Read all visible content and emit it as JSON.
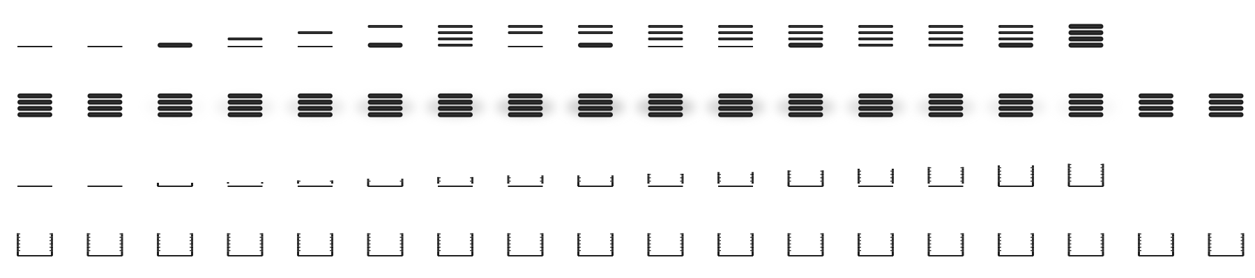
{
  "sprite_sheet": {
    "background": "#ffffff",
    "ink_color": "#1e1e1e",
    "glow_color": "#cfcfcf",
    "rows": [
      {
        "name": "disc-stack-assembly",
        "type": "stack",
        "frames": [
          {
            "discs": []
          },
          {
            "discs": []
          },
          {
            "discs": [
              {
                "level": 0,
                "weight": "thick"
              }
            ]
          },
          {
            "discs": [
              {
                "level": 1,
                "weight": "thin"
              }
            ]
          },
          {
            "discs": [
              {
                "level": 2,
                "weight": "thin"
              }
            ]
          },
          {
            "discs": [
              {
                "level": 0,
                "weight": "thick"
              },
              {
                "level": 3,
                "weight": "thin"
              }
            ]
          },
          {
            "discs": [
              {
                "level": 0,
                "weight": "thin"
              },
              {
                "level": 1,
                "weight": "thin"
              },
              {
                "level": 2,
                "weight": "thin"
              },
              {
                "level": 3,
                "weight": "thin"
              }
            ]
          },
          {
            "discs": [
              {
                "level": 2,
                "weight": "thin"
              },
              {
                "level": 3,
                "weight": "thin"
              }
            ]
          },
          {
            "discs": [
              {
                "level": 0,
                "weight": "thick"
              },
              {
                "level": 2,
                "weight": "thin"
              },
              {
                "level": 3,
                "weight": "thin"
              }
            ]
          },
          {
            "discs": [
              {
                "level": 1,
                "weight": "thin"
              },
              {
                "level": 2,
                "weight": "thin"
              },
              {
                "level": 3,
                "weight": "thin"
              }
            ]
          },
          {
            "discs": [
              {
                "level": 1,
                "weight": "thin"
              },
              {
                "level": 2,
                "weight": "thin"
              },
              {
                "level": 3,
                "weight": "thin"
              }
            ]
          },
          {
            "discs": [
              {
                "level": 0,
                "weight": "thick"
              },
              {
                "level": 1,
                "weight": "thin"
              },
              {
                "level": 2,
                "weight": "thin"
              },
              {
                "level": 3,
                "weight": "thin"
              }
            ]
          },
          {
            "discs": [
              {
                "level": 0,
                "weight": "thin"
              },
              {
                "level": 1,
                "weight": "thin"
              },
              {
                "level": 2,
                "weight": "thin"
              },
              {
                "level": 3,
                "weight": "thin"
              }
            ]
          },
          {
            "discs": [
              {
                "level": 0,
                "weight": "thin"
              },
              {
                "level": 1,
                "weight": "thin"
              },
              {
                "level": 2,
                "weight": "thin"
              },
              {
                "level": 3,
                "weight": "thin"
              }
            ]
          },
          {
            "discs": [
              {
                "level": 0,
                "weight": "thick"
              },
              {
                "level": 1,
                "weight": "thin"
              },
              {
                "level": 2,
                "weight": "thin"
              },
              {
                "level": 3,
                "weight": "thin"
              }
            ]
          },
          {
            "discs": [
              {
                "level": 0,
                "weight": "thick"
              },
              {
                "level": 1,
                "weight": "thick"
              },
              {
                "level": 2,
                "weight": "thick"
              },
              {
                "level": 3,
                "weight": "thick"
              }
            ]
          }
        ]
      },
      {
        "name": "disc-stack-glow",
        "type": "stack",
        "frames": [
          {
            "glow": 0
          },
          {
            "glow": 0
          },
          {
            "glow": 0.15
          },
          {
            "glow": 0.35
          },
          {
            "glow": 0.5
          },
          {
            "glow": 0.65
          },
          {
            "glow": 0.8
          },
          {
            "glow": 0.9
          },
          {
            "glow": 1
          },
          {
            "glow": 1
          },
          {
            "glow": 0.9
          },
          {
            "glow": 0.8
          },
          {
            "glow": 0.7
          },
          {
            "glow": 0.55
          },
          {
            "glow": 0.4
          },
          {
            "glow": 0.2
          },
          {
            "glow": 0
          },
          {
            "glow": 0
          }
        ]
      },
      {
        "name": "bracket-assembly",
        "type": "bracket",
        "frames": [
          {
            "corners": 0,
            "side": 0
          },
          {
            "corners": 0,
            "side": 0
          },
          {
            "corners": 1,
            "side": 0
          },
          {
            "corners": 0,
            "side": 1
          },
          {
            "corners": 0,
            "side": 2
          },
          {
            "corners": 1,
            "side": 3
          },
          {
            "corners": 0,
            "side": 4
          },
          {
            "corners": 0,
            "side": 5
          },
          {
            "corners": 1,
            "side": 5
          },
          {
            "corners": 0,
            "side": 6
          },
          {
            "corners": 0,
            "side": 7
          },
          {
            "corners": 1,
            "side": 8
          },
          {
            "corners": 0,
            "side": 9
          },
          {
            "corners": 0,
            "side": 10
          },
          {
            "corners": 1,
            "side": 11
          },
          {
            "corners": 1,
            "side": 12
          }
        ]
      },
      {
        "name": "bracket-complete",
        "type": "bracket",
        "frames": [
          {
            "corners": 1,
            "side": 12
          },
          {
            "corners": 1,
            "side": 12
          },
          {
            "corners": 1,
            "side": 12
          },
          {
            "corners": 1,
            "side": 12
          },
          {
            "corners": 1,
            "side": 12
          },
          {
            "corners": 1,
            "side": 12
          },
          {
            "corners": 1,
            "side": 12
          },
          {
            "corners": 1,
            "side": 12
          },
          {
            "corners": 1,
            "side": 12
          },
          {
            "corners": 1,
            "side": 12
          },
          {
            "corners": 1,
            "side": 12
          },
          {
            "corners": 1,
            "side": 12
          },
          {
            "corners": 1,
            "side": 12
          },
          {
            "corners": 1,
            "side": 12
          },
          {
            "corners": 1,
            "side": 12
          },
          {
            "corners": 1,
            "side": 12
          },
          {
            "corners": 1,
            "side": 12
          },
          {
            "corners": 1,
            "side": 12
          }
        ]
      }
    ]
  }
}
